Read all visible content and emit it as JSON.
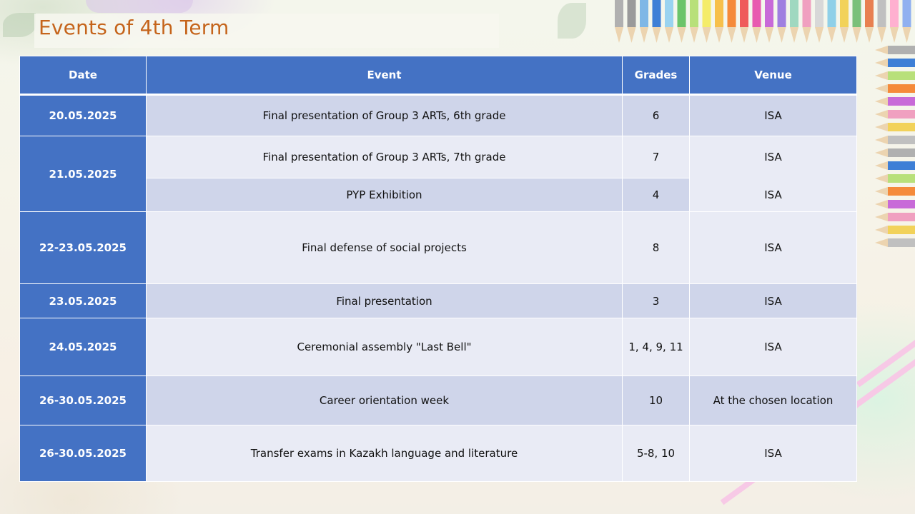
{
  "title": "Events of 4th Term",
  "colors": {
    "title": "#c5641b",
    "header_bg": "#4472c4",
    "row_dark": "#cfd5ea",
    "row_light": "#e9ebf5"
  },
  "table": {
    "headers": {
      "date": "Date",
      "event": "Event",
      "grades": "Grades",
      "venue": "Venue"
    },
    "rows": [
      {
        "date": "20.05.2025",
        "event": "Final presentation of Group 3 ARTs, 6th grade",
        "grades": "6",
        "venue": "ISA"
      },
      {
        "date": "21.05.2025",
        "event": "Final presentation of Group 3 ARTs, 7th grade",
        "grades": "7",
        "venue": "ISA"
      },
      {
        "event": "PYP Exhibition",
        "grades": "4",
        "venue": "ISA"
      },
      {
        "date": "22-23.05.2025",
        "event": "Final defense of social projects",
        "grades": "8",
        "venue": "ISA"
      },
      {
        "date": "23.05.2025",
        "event": "Final presentation",
        "grades": "3",
        "venue": "ISA"
      },
      {
        "date": "24.05.2025",
        "event": "Ceremonial  assembly \"Last Bell\"",
        "grades": "1, 4, 9, 11",
        "venue": "ISA"
      },
      {
        "date": "26-30.05.2025",
        "event": "Career orientation week",
        "grades": "10",
        "venue": "At the chosen location"
      },
      {
        "date": "26-30.05.2025",
        "event": "Transfer exams in Kazakh language and literature",
        "grades": "5-8, 10",
        "venue": "ISA"
      }
    ]
  }
}
